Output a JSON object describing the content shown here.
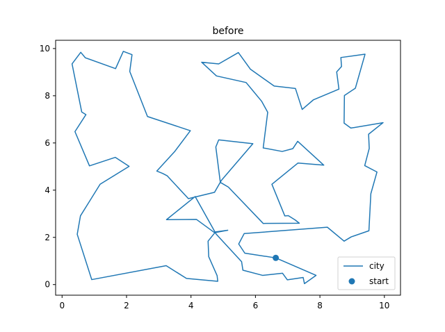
{
  "chart_data": {
    "type": "line",
    "title": "before",
    "xlabel": "",
    "ylabel": "",
    "xlim": [
      -0.2,
      10.5
    ],
    "ylim": [
      -0.45,
      10.35
    ],
    "xticks": [
      0,
      2,
      4,
      6,
      8,
      10
    ],
    "yticks": [
      0,
      2,
      4,
      6,
      8,
      10
    ],
    "x_tick_labels": [
      "0",
      "2",
      "4",
      "6",
      "8",
      "10"
    ],
    "y_tick_labels": [
      "0",
      "2",
      "4",
      "6",
      "8",
      "10"
    ],
    "grid": false,
    "legend_position": "lower right",
    "series": [
      {
        "name": "city",
        "kind": "line",
        "color": "#1f77b4",
        "points": [
          [
            6.63,
            1.13
          ],
          [
            5.67,
            1.33
          ],
          [
            5.48,
            1.72
          ],
          [
            5.65,
            2.16
          ],
          [
            8.23,
            2.43
          ],
          [
            8.75,
            1.84
          ],
          [
            8.97,
            2.02
          ],
          [
            9.52,
            2.28
          ],
          [
            9.58,
            3.85
          ],
          [
            9.77,
            4.77
          ],
          [
            9.39,
            5.04
          ],
          [
            9.53,
            5.77
          ],
          [
            9.51,
            6.37
          ],
          [
            9.96,
            6.86
          ],
          [
            8.96,
            6.63
          ],
          [
            8.75,
            6.84
          ],
          [
            8.76,
            8.01
          ],
          [
            9.1,
            8.32
          ],
          [
            9.4,
            9.76
          ],
          [
            8.65,
            9.62
          ],
          [
            8.67,
            9.24
          ],
          [
            8.52,
            9.01
          ],
          [
            8.59,
            8.28
          ],
          [
            7.8,
            7.83
          ],
          [
            7.45,
            7.42
          ],
          [
            7.24,
            8.31
          ],
          [
            6.58,
            8.41
          ],
          [
            5.84,
            9.13
          ],
          [
            5.47,
            9.83
          ],
          [
            4.86,
            9.35
          ],
          [
            4.33,
            9.42
          ],
          [
            4.79,
            8.84
          ],
          [
            5.71,
            8.56
          ],
          [
            6.19,
            7.77
          ],
          [
            6.38,
            7.3
          ],
          [
            6.24,
            5.79
          ],
          [
            6.83,
            5.64
          ],
          [
            7.16,
            5.76
          ],
          [
            7.31,
            6.07
          ],
          [
            8.12,
            5.06
          ],
          [
            7.32,
            5.15
          ],
          [
            6.51,
            4.25
          ],
          [
            6.91,
            2.91
          ],
          [
            7.02,
            2.92
          ],
          [
            7.23,
            2.74
          ],
          [
            7.36,
            2.6
          ],
          [
            6.24,
            2.59
          ],
          [
            5.16,
            4.13
          ],
          [
            4.91,
            4.33
          ],
          [
            4.77,
            5.83
          ],
          [
            4.86,
            6.13
          ],
          [
            5.92,
            5.97
          ],
          [
            4.94,
            4.41
          ],
          [
            4.73,
            3.91
          ],
          [
            4.13,
            3.71
          ],
          [
            3.92,
            3.64
          ],
          [
            3.26,
            4.61
          ],
          [
            3.12,
            4.71
          ],
          [
            2.94,
            4.81
          ],
          [
            3.49,
            5.63
          ],
          [
            3.98,
            6.52
          ],
          [
            2.65,
            7.12
          ],
          [
            2.1,
            9.03
          ],
          [
            2.17,
            9.74
          ],
          [
            1.9,
            9.88
          ],
          [
            1.66,
            9.15
          ],
          [
            0.72,
            9.61
          ],
          [
            0.58,
            9.84
          ],
          [
            0.31,
            9.35
          ],
          [
            0.61,
            7.31
          ],
          [
            0.74,
            7.2
          ],
          [
            0.4,
            6.48
          ],
          [
            0.85,
            5.03
          ],
          [
            1.65,
            5.39
          ],
          [
            2.08,
            5.01
          ],
          [
            1.18,
            4.25
          ],
          [
            0.57,
            2.91
          ],
          [
            0.47,
            2.13
          ],
          [
            0.92,
            0.21
          ],
          [
            3.23,
            0.8
          ],
          [
            3.86,
            0.26
          ],
          [
            4.83,
            0.14
          ],
          [
            4.81,
            0.38
          ],
          [
            4.55,
            1.18
          ],
          [
            4.53,
            1.84
          ],
          [
            4.76,
            2.23
          ],
          [
            5.14,
            2.3
          ],
          [
            4.73,
            2.2
          ],
          [
            4.17,
            2.76
          ],
          [
            3.24,
            2.75
          ],
          [
            4.13,
            3.73
          ],
          [
            4.78,
            2.14
          ],
          [
            5.57,
            0.97
          ],
          [
            5.61,
            0.61
          ],
          [
            6.22,
            0.39
          ],
          [
            6.84,
            0.48
          ],
          [
            6.99,
            0.2
          ],
          [
            7.48,
            0.3
          ],
          [
            7.52,
            0.04
          ],
          [
            7.88,
            0.39
          ],
          [
            6.63,
            1.13
          ]
        ]
      },
      {
        "name": "start",
        "kind": "scatter",
        "color": "#1f77b4",
        "points": [
          [
            6.63,
            1.13
          ]
        ]
      }
    ]
  }
}
